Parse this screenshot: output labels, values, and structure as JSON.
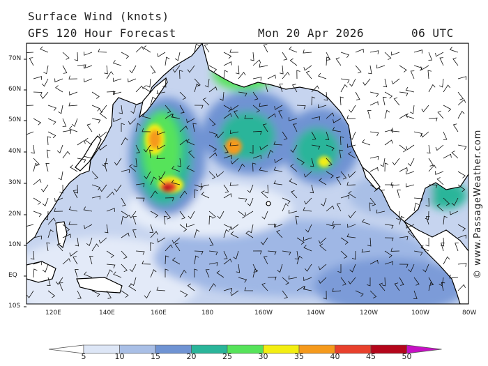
{
  "header": {
    "title": "Surface Wind (knots)",
    "subtitle": "GFS 120 Hour Forecast",
    "date": "Mon 20 Apr 2026",
    "time": "06 UTC"
  },
  "credit": "© www.PassageWeather.com",
  "axes": {
    "lat_labels": [
      "70N",
      "60N",
      "50N",
      "40N",
      "30N",
      "20N",
      "10N",
      "EQ",
      "10S"
    ],
    "lon_labels": [
      "120E",
      "140E",
      "160E",
      "180",
      "160W",
      "140W",
      "120W",
      "100W",
      "80W"
    ]
  },
  "legend": {
    "ticks": [
      "5",
      "10",
      "15",
      "20",
      "25",
      "30",
      "35",
      "40",
      "45",
      "50"
    ],
    "colors": [
      "#dde6f6",
      "#a9bfe6",
      "#6f93d3",
      "#2ab59a",
      "#56e35a",
      "#f3ee12",
      "#f59a1c",
      "#e8402c",
      "#b4061b",
      "#c610c4"
    ]
  },
  "colors": {
    "land": "#ffffff",
    "ocean_background": "#c9d6f0",
    "coastline": "#000000",
    "barb": "#111111"
  }
}
